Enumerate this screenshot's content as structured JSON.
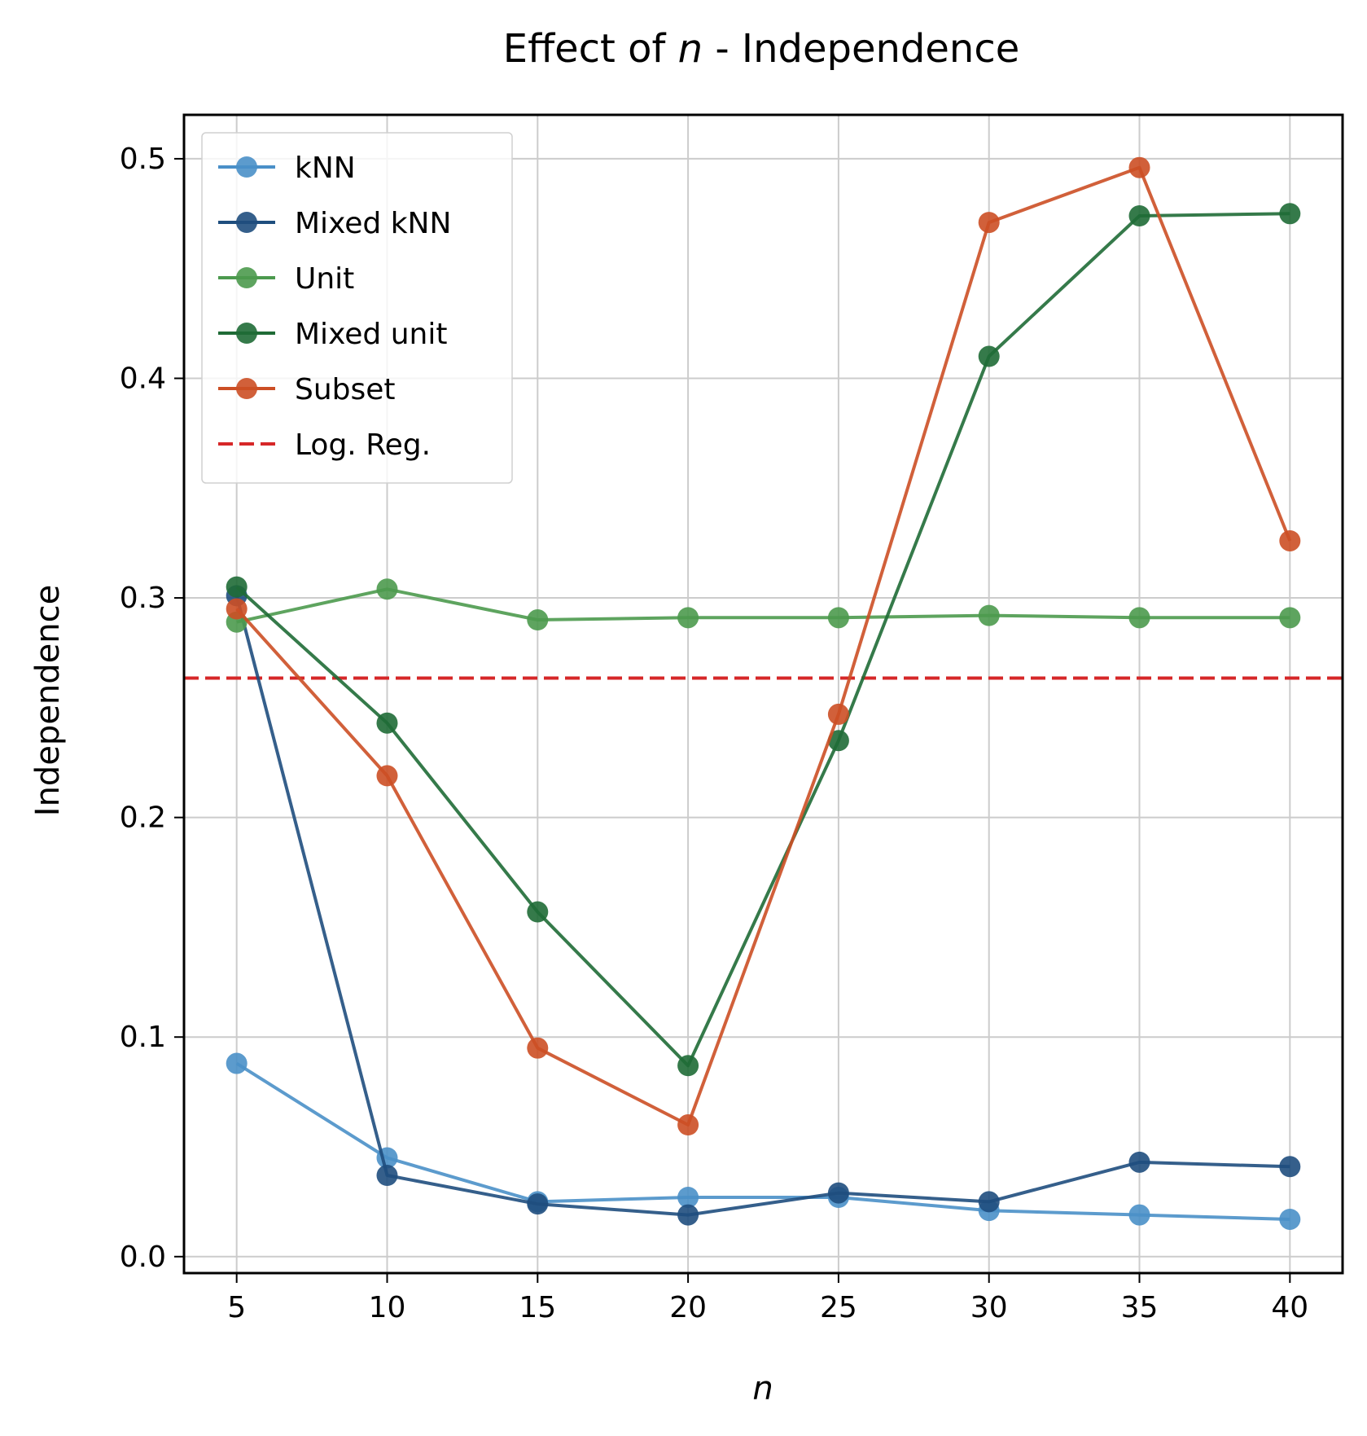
{
  "chart_data": {
    "type": "line",
    "title_prefix": "Effect of ",
    "title_var": "n",
    "title_suffix": " - Independence",
    "xlabel": "n",
    "ylabel": "Independence",
    "x": [
      5,
      10,
      15,
      20,
      25,
      30,
      35,
      40
    ],
    "xlim": [
      3.25,
      41.75
    ],
    "ylim": [
      -0.0075,
      0.52
    ],
    "xticks": [
      5,
      10,
      15,
      20,
      25,
      30,
      35,
      40
    ],
    "yticks": [
      0.0,
      0.1,
      0.2,
      0.3,
      0.4,
      0.5
    ],
    "ytick_labels": [
      "0.0",
      "0.1",
      "0.2",
      "0.3",
      "0.4",
      "0.5"
    ],
    "grid": true,
    "legend_position": "top-left",
    "series": [
      {
        "name": "kNN",
        "color": "#4a90c8",
        "values": [
          0.088,
          0.045,
          0.025,
          0.027,
          0.027,
          0.021,
          0.019,
          0.017
        ]
      },
      {
        "name": "Mixed kNN",
        "color": "#1f4e7e",
        "values": [
          0.301,
          0.037,
          0.024,
          0.019,
          0.029,
          0.025,
          0.043,
          0.041
        ]
      },
      {
        "name": "Unit",
        "color": "#4c9a4e",
        "values": [
          0.289,
          0.304,
          0.29,
          0.291,
          0.291,
          0.292,
          0.291,
          0.291
        ]
      },
      {
        "name": "Mixed unit",
        "color": "#1f6b36",
        "values": [
          0.305,
          0.243,
          0.157,
          0.087,
          0.235,
          0.41,
          0.474,
          0.475
        ]
      },
      {
        "name": "Subset",
        "color": "#cc4f25",
        "values": [
          0.295,
          0.219,
          0.095,
          0.06,
          0.247,
          0.471,
          0.496,
          0.326
        ]
      }
    ],
    "reference_line": {
      "name": "Log. Reg.",
      "value": 0.2635,
      "color": "#d62728",
      "style": "dashed"
    }
  }
}
